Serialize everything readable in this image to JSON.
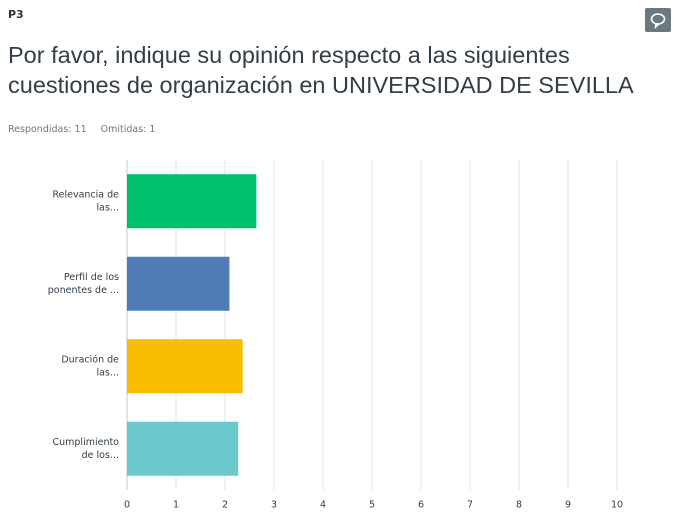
{
  "header": {
    "question_id": "P3",
    "title": "Por favor, indique su opinión respecto a las siguientes cuestiones de organización en UNIVERSIDAD DE SEVILLA",
    "answered": "Respondidas: 11",
    "skipped": "Omitidas: 1"
  },
  "chart_data": {
    "type": "barh",
    "categories": [
      [
        "Relevancia de",
        "las..."
      ],
      [
        "Perfil de los",
        "ponentes de ..."
      ],
      [
        "Duración de",
        "las..."
      ],
      [
        "Cumplimiento",
        "de los..."
      ]
    ],
    "values": [
      2.64,
      2.09,
      2.36,
      2.27
    ],
    "colors": [
      "#00bf6f",
      "#507cb6",
      "#f9be00",
      "#6bc8cd"
    ],
    "xlim": [
      0,
      10
    ],
    "xticks": [
      0,
      1,
      2,
      3,
      4,
      5,
      6,
      7,
      8,
      9,
      10
    ],
    "grid": true
  }
}
